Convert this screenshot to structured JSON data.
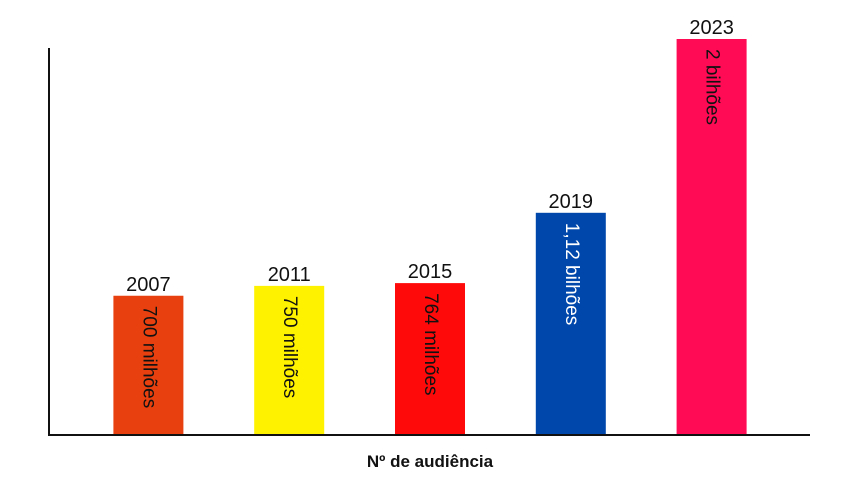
{
  "chart_data": {
    "type": "bar",
    "title": "",
    "xlabel": "Nº de audiência",
    "ylabel": "",
    "ylim": [
      0,
      2
    ],
    "grid": false,
    "categories": [
      "2007",
      "2011",
      "2015",
      "2019",
      "2023"
    ],
    "values": [
      0.7,
      0.75,
      0.764,
      1.12,
      2.0
    ],
    "value_labels": [
      "700 milhões",
      "750 milhões",
      "764 milhões",
      "1,12 bilhões",
      "2 bilhões"
    ],
    "colors": [
      "#e8410f",
      "#fff200",
      "#ff0a0a",
      "#0047ab",
      "#ff0a54"
    ],
    "label_colors": [
      "#111111",
      "#111111",
      "#111111",
      "#ffffff",
      "#111111"
    ]
  }
}
